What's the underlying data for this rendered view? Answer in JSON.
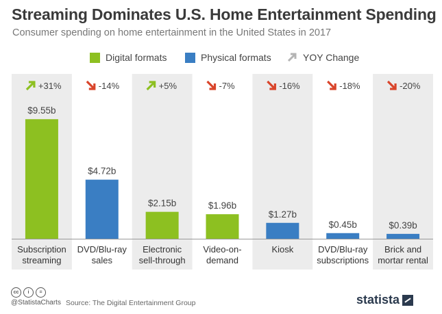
{
  "header": {
    "title": "Streaming Dominates U.S. Home Entertainment Spending",
    "subtitle": "Consumer spending on home entertainment in the United States in 2017"
  },
  "legend": {
    "digital": "Digital formats",
    "physical": "Physical formats",
    "yoy": "YOY Change"
  },
  "colors": {
    "digital": "#8dc021",
    "physical": "#3a7ec3",
    "arrow_up": "#8dc021",
    "arrow_down": "#d9452b",
    "yoy_legend": "#b4b4b4",
    "band": "#ececec"
  },
  "chart_data": {
    "type": "bar",
    "categories": [
      [
        "Subscription",
        "streaming"
      ],
      [
        "DVD/Blu-ray",
        "sales"
      ],
      [
        "Electronic",
        "sell-through"
      ],
      [
        "Video-on-",
        "demand"
      ],
      [
        "Kiosk"
      ],
      [
        "DVD/Blu-ray",
        "subscriptions"
      ],
      [
        "Brick and",
        "mortar rental"
      ]
    ],
    "values": [
      9.55,
      4.72,
      2.15,
      1.96,
      1.27,
      0.45,
      0.39
    ],
    "value_labels": [
      "$9.55b",
      "$4.72b",
      "$2.15b",
      "$1.96b",
      "$1.27b",
      "$0.45b",
      "$0.39b"
    ],
    "formats": [
      "digital",
      "physical",
      "digital",
      "digital",
      "physical",
      "physical",
      "physical"
    ],
    "yoy_change": [
      "+31%",
      "-14%",
      "+5%",
      "-7%",
      "-16%",
      "-18%",
      "-20%"
    ],
    "yoy_direction": [
      "up",
      "down",
      "up",
      "down",
      "down",
      "down",
      "down"
    ],
    "unit": "billion U.S. dollars"
  },
  "footer": {
    "handle": "@StatistaCharts",
    "source": "Source: The Digital Entertainment Group",
    "brand": "statista"
  }
}
